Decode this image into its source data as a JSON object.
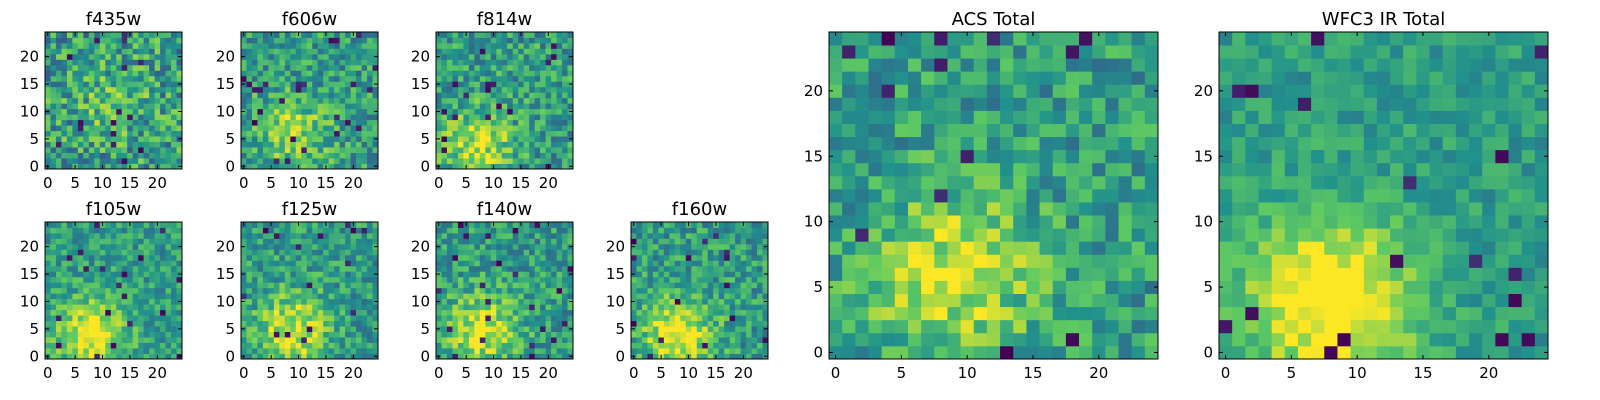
{
  "chart_data": [
    {
      "type": "heatmap",
      "title": "f435w",
      "grid": [
        25,
        25
      ],
      "xticks": [
        "0",
        "5",
        "10",
        "15",
        "20"
      ],
      "yticks": [
        "0",
        "5",
        "10",
        "15",
        "20"
      ],
      "xlim": [
        0,
        25
      ],
      "ylim": [
        0,
        25
      ],
      "colormap": "viridis",
      "bright_center": [
        12,
        12
      ],
      "seed": 11,
      "noise": 0.55,
      "signal": 0.15
    },
    {
      "type": "heatmap",
      "title": "f606w",
      "grid": [
        25,
        25
      ],
      "xticks": [
        "0",
        "5",
        "10",
        "15",
        "20"
      ],
      "yticks": [
        "0",
        "5",
        "10",
        "15",
        "20"
      ],
      "xlim": [
        0,
        25
      ],
      "ylim": [
        0,
        25
      ],
      "colormap": "viridis",
      "bright_center": [
        9,
        6
      ],
      "seed": 23,
      "noise": 0.45,
      "signal": 0.3
    },
    {
      "type": "heatmap",
      "title": "f814w",
      "grid": [
        25,
        25
      ],
      "xticks": [
        "0",
        "5",
        "10",
        "15",
        "20"
      ],
      "yticks": [
        "0",
        "5",
        "10",
        "15",
        "20"
      ],
      "xlim": [
        0,
        25
      ],
      "ylim": [
        0,
        25
      ],
      "colormap": "viridis",
      "bright_center": [
        7,
        4
      ],
      "seed": 37,
      "noise": 0.45,
      "signal": 0.35
    },
    {
      "type": "heatmap",
      "title": "f105w",
      "grid": [
        25,
        25
      ],
      "xticks": [
        "0",
        "5",
        "10",
        "15",
        "20"
      ],
      "yticks": [
        "0",
        "5",
        "10",
        "15",
        "20"
      ],
      "xlim": [
        0,
        25
      ],
      "ylim": [
        0,
        25
      ],
      "colormap": "viridis",
      "bright_center": [
        8,
        4
      ],
      "seed": 41,
      "noise": 0.35,
      "signal": 0.45
    },
    {
      "type": "heatmap",
      "title": "f125w",
      "grid": [
        25,
        25
      ],
      "xticks": [
        "0",
        "5",
        "10",
        "15",
        "20"
      ],
      "yticks": [
        "0",
        "5",
        "10",
        "15",
        "20"
      ],
      "xlim": [
        0,
        25
      ],
      "ylim": [
        0,
        25
      ],
      "colormap": "viridis",
      "bright_center": [
        9,
        5
      ],
      "seed": 53,
      "noise": 0.4,
      "signal": 0.4
    },
    {
      "type": "heatmap",
      "title": "f140w",
      "grid": [
        25,
        25
      ],
      "xticks": [
        "0",
        "5",
        "10",
        "15",
        "20"
      ],
      "yticks": [
        "0",
        "5",
        "10",
        "15",
        "20"
      ],
      "xlim": [
        0,
        25
      ],
      "ylim": [
        0,
        25
      ],
      "colormap": "viridis",
      "bright_center": [
        8,
        5
      ],
      "seed": 67,
      "noise": 0.4,
      "signal": 0.4
    },
    {
      "type": "heatmap",
      "title": "f160w",
      "grid": [
        25,
        25
      ],
      "xticks": [
        "0",
        "5",
        "10",
        "15",
        "20"
      ],
      "yticks": [
        "0",
        "5",
        "10",
        "15",
        "20"
      ],
      "xlim": [
        0,
        25
      ],
      "ylim": [
        0,
        25
      ],
      "colormap": "viridis",
      "bright_center": [
        8,
        4
      ],
      "seed": 79,
      "noise": 0.4,
      "signal": 0.45
    },
    {
      "type": "heatmap",
      "title": "ACS Total",
      "grid": [
        25,
        25
      ],
      "xticks": [
        "0",
        "5",
        "10",
        "15",
        "20"
      ],
      "yticks": [
        "0",
        "5",
        "10",
        "15",
        "20"
      ],
      "xlim": [
        0,
        25
      ],
      "ylim": [
        0,
        25
      ],
      "colormap": "viridis",
      "bright_center": [
        9,
        6
      ],
      "seed": 97,
      "noise": 0.4,
      "signal": 0.38
    },
    {
      "type": "heatmap",
      "title": "WFC3 IR Total",
      "grid": [
        25,
        25
      ],
      "xticks": [
        "0",
        "5",
        "10",
        "15",
        "20"
      ],
      "yticks": [
        "0",
        "5",
        "10",
        "15",
        "20"
      ],
      "xlim": [
        0,
        25
      ],
      "ylim": [
        0,
        25
      ],
      "colormap": "viridis",
      "bright_center": [
        8,
        4
      ],
      "seed": 113,
      "noise": 0.25,
      "signal": 0.55
    }
  ],
  "colors": {
    "viridis_stops": [
      "#440154",
      "#3b528b",
      "#21918c",
      "#5ec962",
      "#fde725"
    ],
    "frame": "#000000",
    "background": "#ffffff"
  }
}
